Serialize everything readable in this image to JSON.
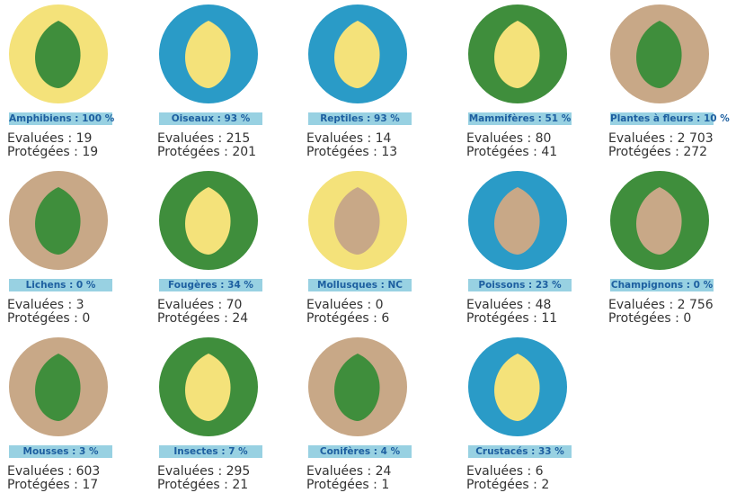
{
  "items": [
    {
      "label": "Amphibiens : 100 %",
      "evaluated": "Evaluées : 19",
      "protected": "Protégées : 19"
    },
    {
      "label": "Oiseaux : 93 %",
      "evaluated": "Evaluées : 215",
      "protected": "Protégées : 201"
    },
    {
      "label": "Reptiles : 93 %",
      "evaluated": "Evaluées : 14",
      "protected": "Protégées : 13"
    },
    {
      "label": "Mammifères : 51 %",
      "evaluated": "Evaluées : 80",
      "protected": "Protégées : 41"
    },
    {
      "label": "Plantes à fleurs : 10 %",
      "evaluated": "Evaluées : 2 703",
      "protected": "Protégées : 272"
    },
    {
      "label": "Lichens : 0 %",
      "evaluated": "Evaluées : 3",
      "protected": "Protégées : 0"
    },
    {
      "label": "Fougères : 34 %",
      "evaluated": "Evaluées : 70",
      "protected": "Protégées : 24"
    },
    {
      "label": "Mollusques : NC",
      "evaluated": "Evaluées : 0",
      "protected": "Protégées : 6"
    },
    {
      "label": "Poissons : 23 %",
      "evaluated": "Evaluées : 48",
      "protected": "Protégées : 11"
    },
    {
      "label": "Champignons : 0 %",
      "evaluated": "Evaluées : 2 756",
      "protected": "Protégées : 0"
    },
    {
      "label": "Mousses : 3 %",
      "evaluated": "Evaluées : 603",
      "protected": "Protégées : 17"
    },
    {
      "label": "Insectes : 7 %",
      "evaluated": "Evaluées : 295",
      "protected": "Protégées : 21"
    },
    {
      "label": "Conifères : 4 %",
      "evaluated": "Evaluées : 24",
      "protected": "Protégées : 1"
    },
    {
      "label": "Crustacés : 33 %",
      "evaluated": "Evaluées : 6",
      "protected": "Protégées : 2"
    }
  ]
}
